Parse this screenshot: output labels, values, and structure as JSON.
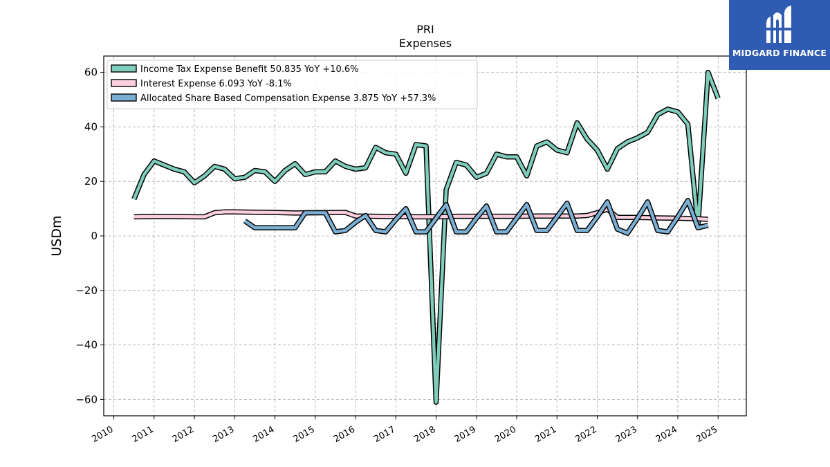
{
  "logo": {
    "text": "MIDGARD FINANCE",
    "icon": "midgard-mark-icon",
    "color": "#2f5bb3"
  },
  "chart_data": {
    "type": "line",
    "title": "PRI",
    "subtitle": "Expenses",
    "ylabel": "USDm",
    "xlabel": "",
    "ylim": [
      -66,
      66
    ],
    "xlim": [
      2009.75,
      2025.7
    ],
    "yticks": [
      -60,
      -40,
      -20,
      0,
      20,
      40,
      60
    ],
    "xticks": [
      "2010",
      "2011",
      "2012",
      "2013",
      "2014",
      "2015",
      "2016",
      "2017",
      "2018",
      "2019",
      "2020",
      "2021",
      "2022",
      "2023",
      "2024",
      "2025"
    ],
    "grid": true,
    "legend_position": "top-left",
    "series": [
      {
        "name": "Income Tax Expense Benefit  50.835 YoY +10.6%",
        "color": "#7fcdbb",
        "x": [
          2010.5,
          2010.75,
          2011.0,
          2011.25,
          2011.5,
          2011.75,
          2012.0,
          2012.25,
          2012.5,
          2012.75,
          2013.0,
          2013.25,
          2013.5,
          2013.75,
          2014.0,
          2014.25,
          2014.5,
          2014.75,
          2015.0,
          2015.25,
          2015.5,
          2015.75,
          2016.0,
          2016.25,
          2016.5,
          2016.75,
          2017.0,
          2017.25,
          2017.5,
          2017.75,
          2018.0,
          2018.25,
          2018.5,
          2018.75,
          2019.0,
          2019.25,
          2019.5,
          2019.75,
          2020.0,
          2020.25,
          2020.5,
          2020.75,
          2021.0,
          2021.25,
          2021.5,
          2021.75,
          2022.0,
          2022.25,
          2022.5,
          2022.75,
          2023.0,
          2023.25,
          2023.5,
          2023.75,
          2024.0,
          2024.25,
          2024.5,
          2024.75,
          2025.0
        ],
        "values": [
          13.5,
          22.5,
          27.5,
          26.0,
          24.5,
          23.5,
          19.5,
          22.0,
          25.5,
          24.5,
          21.0,
          21.5,
          24.0,
          23.5,
          20.0,
          24.0,
          26.5,
          22.5,
          23.5,
          23.5,
          27.5,
          25.5,
          24.5,
          25.0,
          32.5,
          30.5,
          30.0,
          23.0,
          33.5,
          33.0,
          -61.0,
          17.0,
          27.0,
          26.0,
          21.5,
          23.0,
          30.0,
          29.0,
          29.0,
          22.0,
          33.0,
          34.5,
          31.5,
          30.5,
          41.5,
          35.5,
          31.5,
          24.5,
          32.0,
          34.5,
          36.0,
          38.0,
          44.5,
          46.5,
          45.5,
          41.0,
          3.5,
          60.0,
          50.5
        ]
      },
      {
        "name": "Interest Expense  6.093 YoY -8.1%",
        "color": "#fbcfe0",
        "x": [
          2010.5,
          2011.0,
          2011.5,
          2012.0,
          2012.25,
          2012.5,
          2012.75,
          2013.0,
          2013.5,
          2014.0,
          2014.5,
          2015.0,
          2015.5,
          2015.75,
          2016.0,
          2016.5,
          2017.0,
          2017.5,
          2018.0,
          2018.5,
          2019.0,
          2019.5,
          2020.0,
          2020.5,
          2021.0,
          2021.5,
          2021.75,
          2022.0,
          2022.25,
          2022.5,
          2023.0,
          2023.5,
          2024.0,
          2024.5,
          2024.75
        ],
        "values": [
          7.0,
          7.1,
          7.1,
          7.0,
          7.0,
          8.5,
          8.8,
          8.8,
          8.7,
          8.6,
          8.4,
          8.5,
          8.6,
          8.6,
          7.3,
          7.2,
          7.1,
          7.0,
          7.0,
          7.2,
          7.2,
          7.2,
          7.2,
          7.3,
          7.3,
          7.3,
          7.5,
          8.5,
          9.8,
          6.8,
          6.8,
          6.6,
          6.5,
          6.3,
          6.1
        ]
      },
      {
        "name": "Allocated Share Based Compensation Expense  3.875 YoY +57.3%",
        "color": "#7bafd4",
        "x": [
          2013.25,
          2013.5,
          2014.0,
          2014.5,
          2014.75,
          2015.0,
          2015.25,
          2015.5,
          2015.75,
          2016.0,
          2016.25,
          2016.5,
          2016.75,
          2017.0,
          2017.25,
          2017.5,
          2017.75,
          2018.0,
          2018.25,
          2018.5,
          2018.75,
          2019.0,
          2019.25,
          2019.5,
          2019.75,
          2020.0,
          2020.25,
          2020.5,
          2020.75,
          2021.0,
          2021.25,
          2021.5,
          2021.75,
          2022.0,
          2022.25,
          2022.5,
          2022.75,
          2023.0,
          2023.25,
          2023.5,
          2023.75,
          2024.0,
          2024.25,
          2024.5,
          2024.75
        ],
        "values": [
          5.5,
          3.0,
          3.0,
          3.0,
          8.5,
          8.5,
          8.5,
          1.5,
          2.0,
          5.0,
          7.5,
          2.0,
          1.5,
          6.0,
          10.0,
          1.5,
          1.5,
          6.5,
          11.5,
          1.5,
          1.5,
          6.5,
          11.0,
          1.5,
          1.5,
          6.5,
          11.5,
          2.0,
          2.0,
          7.0,
          12.0,
          2.0,
          2.0,
          7.0,
          12.5,
          2.5,
          1.0,
          6.5,
          12.5,
          2.0,
          1.5,
          7.0,
          13.0,
          3.0,
          3.9
        ]
      }
    ]
  }
}
